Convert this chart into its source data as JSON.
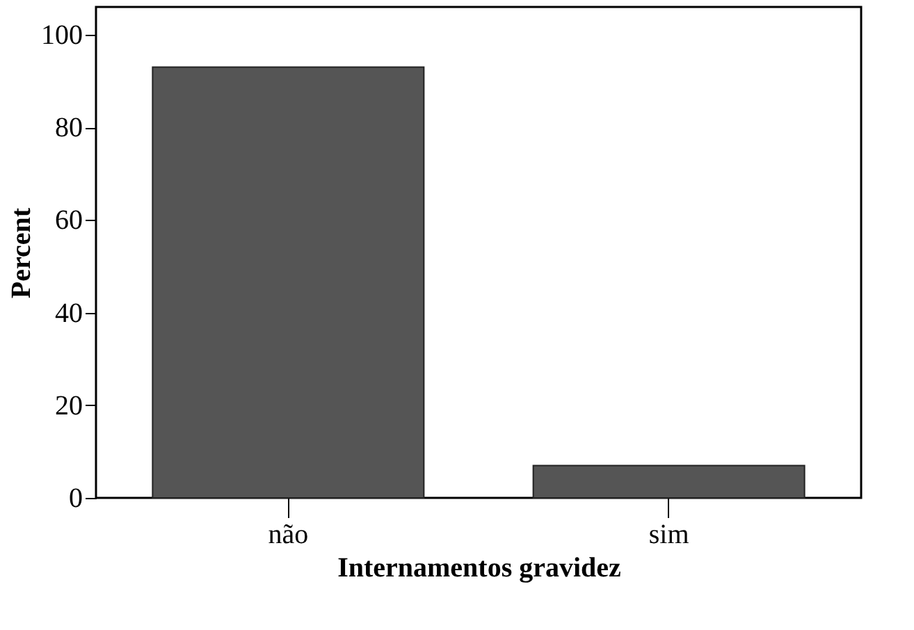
{
  "chart_data": {
    "type": "bar",
    "xlabel": "Internamentos gravidez",
    "ylabel": "Percent",
    "categories": [
      "não",
      "sim"
    ],
    "values": [
      93,
      7
    ],
    "color": "#555555",
    "ylim": [
      0,
      106
    ],
    "yticks": [
      0,
      20,
      40,
      60,
      80,
      100
    ],
    "grid": false
  }
}
